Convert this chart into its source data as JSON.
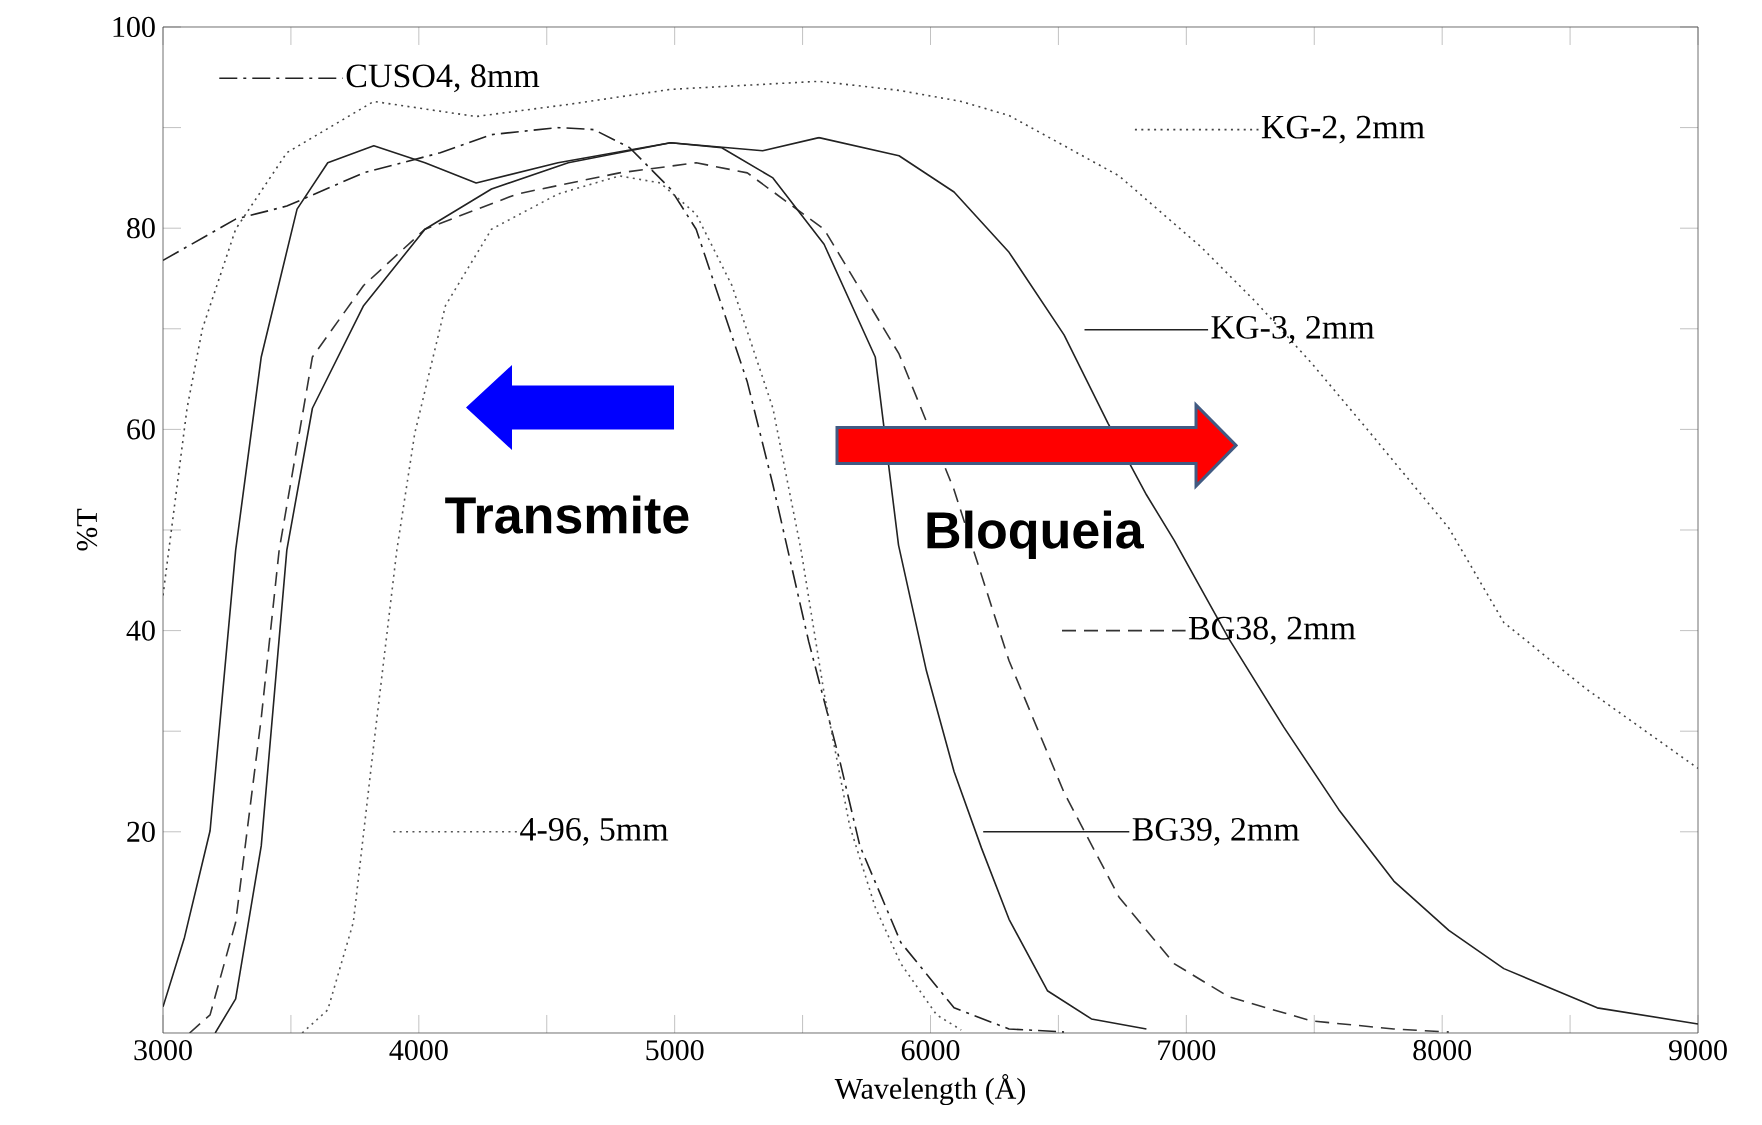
{
  "chart_data": {
    "type": "line",
    "xlabel": "Wavelength (Å)",
    "ylabel": "%T",
    "xlim": [
      3000,
      9000
    ],
    "ylim": [
      0,
      100
    ],
    "xticks": [
      3000,
      4000,
      5000,
      6000,
      7000,
      8000,
      9000
    ],
    "yticks": [
      20,
      40,
      60,
      80,
      100
    ],
    "grid": false,
    "legend": "top left",
    "series": [
      {
        "name": "CUSO4, 8mm",
        "color": "#222222",
        "line_style": "dashdot",
        "x": [
          3000,
          3284,
          3484,
          3784,
          4084,
          4284,
          4544,
          4684,
          4824,
          4984,
          5084,
          5184,
          5284,
          5384,
          5524,
          5644,
          5724,
          5884,
          6092,
          6307,
          6522
        ],
        "values": [
          76.8,
          80.9,
          82.2,
          85.5,
          87.5,
          89.3,
          90.0,
          89.8,
          88.0,
          83.9,
          79.9,
          72.3,
          64.7,
          54.5,
          38.9,
          27.2,
          18.6,
          9.0,
          2.5,
          0.4,
          0.1
        ]
      },
      {
        "name": "KG-2, 2mm",
        "color": "#444444",
        "line_style": "dotted",
        "x": [
          3000,
          3094,
          3154,
          3284,
          3484,
          3824,
          4224,
          4584,
          4984,
          5564,
          5877,
          6120,
          6307,
          6737,
          7059,
          7274,
          7489,
          7704,
          8026,
          8241,
          8563,
          9000
        ],
        "values": [
          43.5,
          62.1,
          70.0,
          79.9,
          87.5,
          92.6,
          91.1,
          92.3,
          93.8,
          94.6,
          93.7,
          92.6,
          91.2,
          85.2,
          78.1,
          72.6,
          66.6,
          60.1,
          50.2,
          40.8,
          34.2,
          26.3
        ]
      },
      {
        "name": "KG-3, 2mm",
        "color": "#222222",
        "line_style": "solid",
        "x": [
          3000,
          3084,
          3184,
          3284,
          3384,
          3524,
          3644,
          3824,
          4024,
          4224,
          4544,
          4984,
          5344,
          5564,
          5877,
          6092,
          6307,
          6522,
          6694,
          6844,
          6952,
          7166,
          7381,
          7596,
          7811,
          8026,
          8241,
          8606,
          9000
        ],
        "values": [
          2.6,
          9.5,
          20.1,
          48.0,
          67.2,
          81.9,
          86.5,
          88.2,
          86.5,
          84.5,
          86.5,
          88.5,
          87.7,
          89.0,
          87.2,
          83.6,
          77.6,
          69.4,
          60.6,
          53.5,
          49.0,
          39.2,
          30.4,
          22.2,
          15.1,
          10.2,
          6.4,
          2.5,
          0.9
        ]
      },
      {
        "name": "BG38, 2mm",
        "color": "#333333",
        "line_style": "dashed",
        "x": [
          3104,
          3184,
          3284,
          3384,
          3454,
          3584,
          3784,
          4024,
          4384,
          4784,
          5084,
          5284,
          5584,
          5877,
          6092,
          6307,
          6522,
          6737,
          6952,
          7166,
          7489,
          7811,
          8026
        ],
        "values": [
          0,
          1.8,
          11.0,
          31.3,
          48.0,
          67.2,
          74.3,
          79.9,
          83.4,
          85.5,
          86.5,
          85.5,
          79.9,
          67.5,
          54.0,
          37.0,
          23.9,
          13.5,
          6.9,
          3.6,
          1.2,
          0.4,
          0.1
        ]
      },
      {
        "name": "4-96, 5mm",
        "color": "#555555",
        "line_style": "dotted",
        "x": [
          3544,
          3644,
          3744,
          3824,
          3914,
          3984,
          4104,
          4284,
          4544,
          4784,
          4944,
          5084,
          5224,
          5384,
          5494,
          5584,
          5684,
          5784,
          5884,
          6024,
          6120
        ],
        "values": [
          0,
          2.3,
          11.0,
          28.7,
          48.0,
          59.6,
          72.3,
          79.9,
          83.4,
          85.2,
          84.5,
          81.4,
          74.3,
          62.1,
          48.0,
          33.8,
          20.6,
          12.5,
          6.9,
          1.8,
          0.3
        ]
      },
      {
        "name": "BG39, 2mm",
        "color": "#222222",
        "line_style": "solid",
        "x": [
          3204,
          3284,
          3384,
          3484,
          3584,
          3784,
          4024,
          4284,
          4584,
          4984,
          5184,
          5384,
          5584,
          5784,
          5875,
          5984,
          6092,
          6199,
          6307,
          6457,
          6629,
          6844
        ],
        "values": [
          0,
          3.4,
          18.6,
          48.0,
          62.1,
          72.3,
          79.9,
          83.9,
          86.5,
          88.5,
          88.0,
          85.0,
          78.4,
          67.2,
          48.5,
          36.0,
          26.0,
          18.4,
          11.3,
          4.2,
          1.4,
          0.4
        ]
      }
    ],
    "annotations": [
      "Transmite",
      "Bloqueia"
    ]
  }
}
